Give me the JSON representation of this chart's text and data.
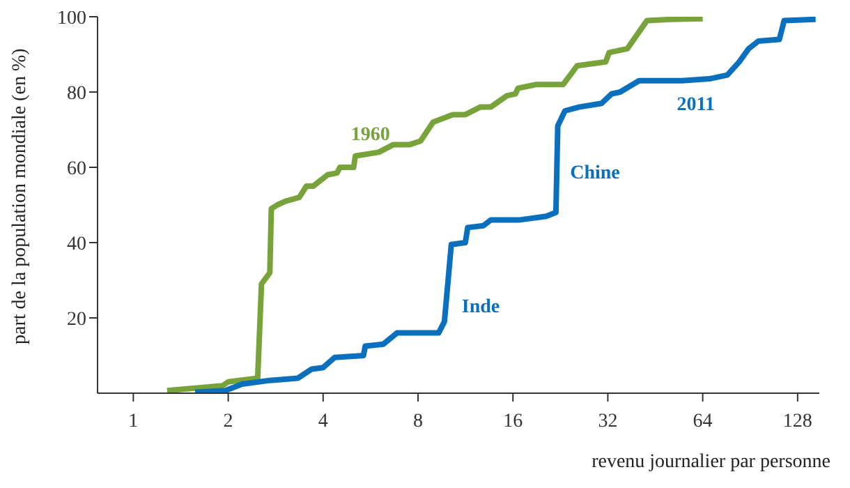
{
  "chart_data": {
    "type": "line",
    "ylabel": "part de la population mondiale (en %)",
    "xlabel": "revenu journalier par personne",
    "log": "x",
    "xlim": [
      0.77,
      150
    ],
    "xticks": [
      1,
      2,
      4,
      8,
      16,
      32,
      64,
      128
    ],
    "ylim": [
      0,
      100
    ],
    "yticks": [
      20,
      40,
      60,
      80,
      100
    ],
    "marker": "none",
    "line_style": "solid",
    "series": [
      {
        "name": "1960",
        "color": "#77a33a",
        "x": [
          1.28,
          1.92,
          2,
          2.48,
          2.55,
          2.71,
          2.74,
          2.86,
          3.04,
          3.36,
          3.54,
          3.72,
          4.13,
          4.43,
          4.52,
          5,
          5.06,
          6,
          6.67,
          7.5,
          8.15,
          8.93,
          10.3,
          11.3,
          12.6,
          13.6,
          15.3,
          16.3,
          16.6,
          19,
          23.1,
          25.6,
          31.5,
          32.3,
          36.9,
          42.6,
          51,
          64
        ],
        "values": [
          0.7,
          2,
          3,
          4,
          29,
          32,
          49,
          50,
          51,
          52,
          55,
          55,
          58,
          58.5,
          60,
          60,
          63,
          64,
          66,
          66,
          67,
          72,
          74,
          74,
          76,
          76,
          79,
          79.5,
          81,
          82,
          82,
          87,
          88,
          90.5,
          91.5,
          99,
          99.3,
          99.5
        ]
      },
      {
        "name": "2011",
        "color": "#0a70bd",
        "x": [
          1.57,
          1.96,
          2.21,
          2.71,
          3.33,
          3.68,
          4,
          4.35,
          5.37,
          5.44,
          6.2,
          6.86,
          9.3,
          9.7,
          10.2,
          11.3,
          11.5,
          12.9,
          13.6,
          16.7,
          20.4,
          21.9,
          22.2,
          23.4,
          25.9,
          30.6,
          32.9,
          35,
          40.2,
          55,
          67.2,
          76.6,
          83.5,
          89.5,
          96,
          112,
          116,
          146
        ],
        "values": [
          0.3,
          0.7,
          2.4,
          3.4,
          4,
          6.4,
          6.8,
          9.5,
          10,
          12.5,
          13,
          16,
          16,
          19,
          39.5,
          40,
          44,
          44.5,
          46,
          46,
          47,
          48,
          71,
          75,
          76,
          77,
          79.5,
          80,
          83,
          83,
          83.5,
          84.5,
          88,
          91.5,
          93.5,
          94,
          99,
          99.3
        ]
      }
    ],
    "annotations": [
      "Inde",
      "Chine"
    ]
  }
}
